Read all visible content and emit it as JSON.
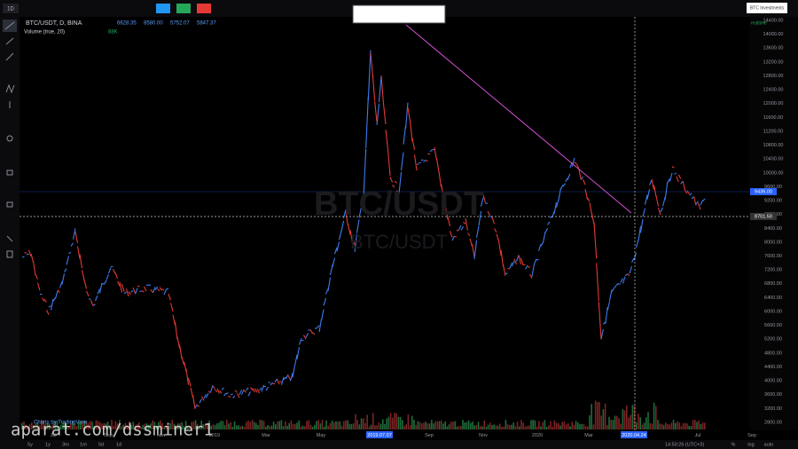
{
  "toolbar": {
    "interval": "1D",
    "symbol": "BTC/USDT, D, BINA",
    "ohlc": [
      "6628.35",
      "8580.00",
      "5752.07",
      "5847.37"
    ],
    "indicator": "Volume (true, 20)",
    "indicator_value": "88K",
    "account": "BTC Investments",
    "status": "realtime"
  },
  "watermark": {
    "symbol": "BTC/USDT",
    "pair": "BTC/USDT"
  },
  "price_axis": [
    "14400.00",
    "14000.00",
    "13600.00",
    "13200.00",
    "12800.00",
    "12400.00",
    "12000.00",
    "11600.00",
    "11200.00",
    "10800.00",
    "10400.00",
    "10000.00",
    "9600.00",
    "9200.00",
    "8800.00",
    "8400.00",
    "8000.00",
    "7600.00",
    "7200.00",
    "6800.00",
    "6400.00",
    "6000.00",
    "5600.00",
    "5200.00",
    "4800.00",
    "4400.00",
    "4000.00",
    "3600.00",
    "3200.00",
    "2800.00"
  ],
  "price_tags": [
    "9436.00",
    "8701.50"
  ],
  "time_axis": [
    "Jul",
    "Sep",
    "Nov",
    "2019",
    "Mar",
    "May",
    "2019.07.07",
    "Sep",
    "Nov",
    "2020",
    "Mar",
    "2020.04.24",
    "Jul",
    "Sep"
  ],
  "range_buttons": [
    "5y",
    "1y",
    "3m",
    "1m",
    "5d",
    "1d"
  ],
  "clock": "14:50:26 (UTC+3)",
  "scale_buttons": [
    "%",
    "log",
    "auto"
  ],
  "credit": "Charts by TradingView",
  "site_watermark": "aparat.com/dssminer1"
}
